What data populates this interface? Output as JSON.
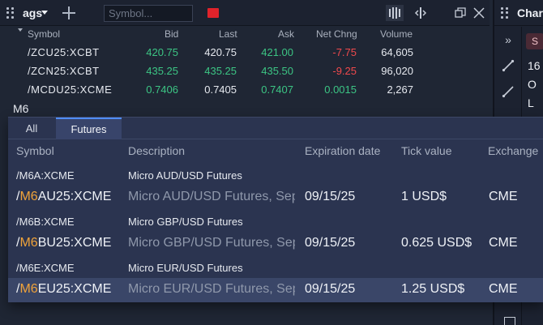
{
  "watchlist": {
    "name": "ags",
    "search_placeholder": "Symbol...",
    "columns": {
      "symbol": "Symbol",
      "bid": "Bid",
      "last": "Last",
      "ask": "Ask",
      "net_chng": "Net Chng",
      "volume": "Volume"
    },
    "rows": [
      {
        "symbol": "/ZCU25:XCBT",
        "bid": "420.75",
        "last": "420.75",
        "ask": "421.00",
        "net_chng": "-7.75",
        "volume": "64,605"
      },
      {
        "symbol": "/ZCN25:XCBT",
        "bid": "435.25",
        "last": "435.25",
        "ask": "435.50",
        "net_chng": "-9.25",
        "volume": "96,020"
      },
      {
        "symbol": "/MCDU25:XCME",
        "bid": "0.7406",
        "last": "0.7405",
        "ask": "0.7407",
        "net_chng": "0.0015",
        "volume": "2,267"
      }
    ],
    "query": "M6",
    "colors": {
      "up": "#3cc584",
      "down": "#f0494c",
      "flag": "#e0232b"
    }
  },
  "chart_panel": {
    "title": "Chart",
    "chip": "S",
    "lines": [
      "16",
      "O",
      "L"
    ]
  },
  "dropdown": {
    "tabs": [
      "All",
      "Futures"
    ],
    "active_tab": "Futures",
    "columns": {
      "symbol": "Symbol",
      "description": "Description",
      "expiration": "Expiration date",
      "tick_value": "Tick value",
      "exchange": "Exchange"
    },
    "roots": [
      {
        "symbol": "/M6A:XCME",
        "description": "Micro AUD/USD Futures"
      },
      {
        "symbol": "/M6B:XCME",
        "description": "Micro GBP/USD Futures"
      },
      {
        "symbol": "/M6E:XCME",
        "description": "Micro EUR/USD Futures"
      }
    ],
    "contracts": [
      {
        "prefix": "/",
        "match": "M6",
        "rest": "AU25:XCME",
        "description": "Micro AUD/USD Futures, Sep",
        "expiration": "09/15/25",
        "tick_value": "1 USD$",
        "exchange": "CME"
      },
      {
        "prefix": "/",
        "match": "M6",
        "rest": "BU25:XCME",
        "description": "Micro GBP/USD Futures, Sep",
        "expiration": "09/15/25",
        "tick_value": "0.625 USD$",
        "exchange": "CME"
      },
      {
        "prefix": "/",
        "match": "M6",
        "rest": "EU25:XCME",
        "description": "Micro EUR/USD Futures, Sep",
        "expiration": "09/15/25",
        "tick_value": "1.25 USD$",
        "exchange": "CME"
      }
    ],
    "highlight_color": "#f0a33a"
  },
  "icons": [
    "grip-icon",
    "plus-icon",
    "flag-icon",
    "bar-chart-icon",
    "split-view-icon",
    "window-icon",
    "close-icon",
    "chevron-right-icon",
    "line-tool-icon",
    "ray-tool-icon"
  ]
}
